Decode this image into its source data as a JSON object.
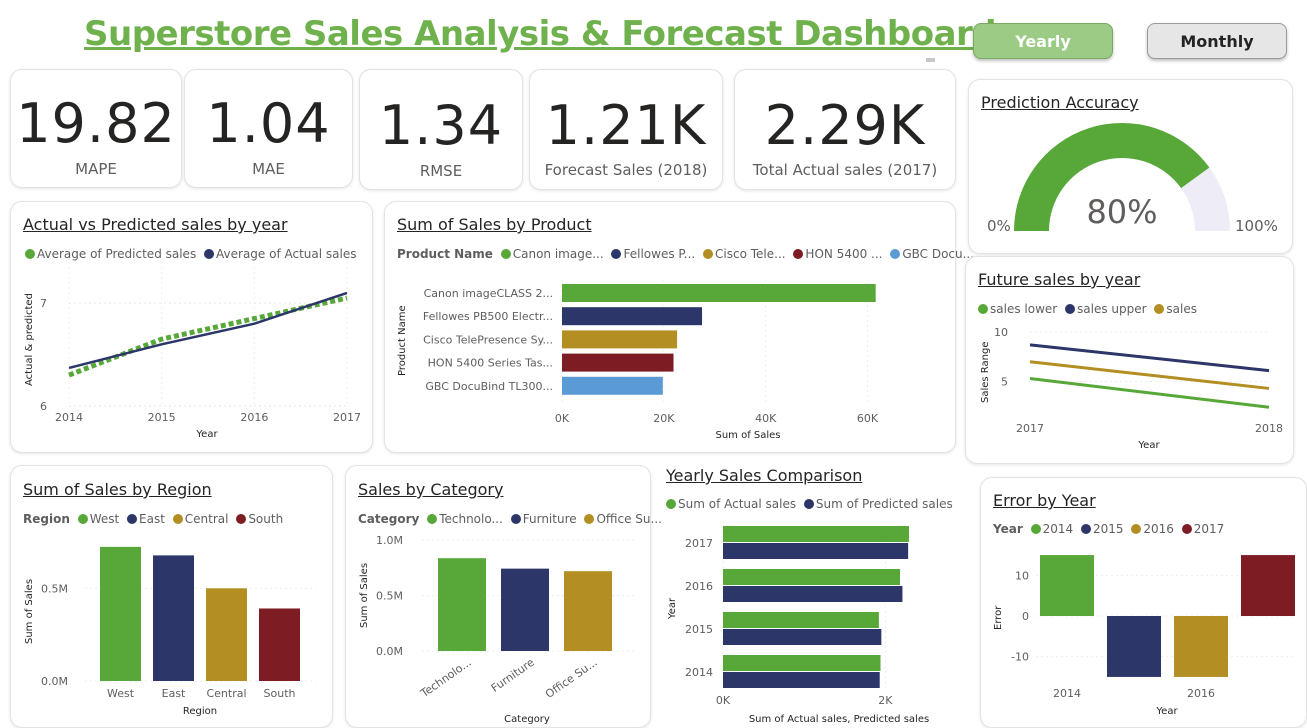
{
  "header": {
    "title": "Superstore Sales Analysis & Forecast Dashboard"
  },
  "toggle": {
    "yearly_label": "Yearly",
    "monthly_label": "Monthly",
    "active": "Yearly"
  },
  "kpis": [
    {
      "value": "19.82",
      "label": "MAPE"
    },
    {
      "value": "1.04",
      "label": "MAE"
    },
    {
      "value": "1.34",
      "label": "RMSE"
    },
    {
      "value": "1.21K",
      "label": "Forecast Sales (2018)"
    },
    {
      "value": "2.29K",
      "label": "Total Actual sales (2017)"
    }
  ],
  "colors": {
    "green": "#58a839",
    "navy": "#2c3669",
    "gold": "#b28e23",
    "maroon": "#7d1c23",
    "blue": "#5b9bd5",
    "gauge_bg": "#eeecf7"
  },
  "accuracy": {
    "title": "Prediction Accuracy",
    "value_label": "80%",
    "min_label": "0%",
    "max_label": "100%",
    "value": 0.8
  },
  "actual_vs_pred": {
    "title": "Actual vs Predicted sales by year",
    "legend": [
      "Average of Predicted sales",
      "Average of Actual sales"
    ],
    "xlabel": "Year",
    "ylabel": "Actual & predicted",
    "xticks": [
      "2014",
      "2015",
      "2016",
      "2017"
    ],
    "yticks": [
      "6",
      "7"
    ]
  },
  "product": {
    "title": "Sum of Sales by Product",
    "legend_title": "Product Name",
    "legend": [
      "Canon image...",
      "Fellowes P...",
      "Cisco Tele...",
      "HON 5400 ...",
      "GBC Docu..."
    ],
    "ylabel": "Product Name",
    "xlabel": "Sum of Sales",
    "xticks": [
      "0K",
      "20K",
      "40K",
      "60K"
    ]
  },
  "future": {
    "title": "Future sales by year",
    "legend": [
      "sales lower",
      "sales upper",
      "sales"
    ],
    "xlabel": "Year",
    "ylabel": "Sales Range",
    "xticks": [
      "2017",
      "2018"
    ],
    "yticks": [
      "5",
      "10"
    ]
  },
  "region": {
    "title": "Sum of Sales by Region",
    "legend_title": "Region",
    "legend": [
      "West",
      "East",
      "Central",
      "South"
    ],
    "xlabel": "Region",
    "ylabel": "Sum of Sales",
    "yticks": [
      "0.0M",
      "0.5M"
    ]
  },
  "category": {
    "title": "Sales by Category",
    "legend_title": "Category",
    "legend": [
      "Technolo...",
      "Furniture",
      "Office Su..."
    ],
    "xlabel": "Category",
    "ylabel": "Sum of Sales",
    "xtick_labels": [
      "Technolo...",
      "Furniture",
      "Office Su..."
    ],
    "yticks": [
      "0.0M",
      "0.5M",
      "1.0M"
    ]
  },
  "yearly": {
    "title": "Yearly Sales Comparison",
    "legend": [
      "Sum of Actual sales",
      "Sum of Predicted sales"
    ],
    "xlabel": "Sum of Actual sales, Predicted sales",
    "ylabel": "Year",
    "xticks": [
      "0K",
      "2K"
    ]
  },
  "error": {
    "title": "Error by Year",
    "legend_title": "Year",
    "legend": [
      "2014",
      "2015",
      "2016",
      "2017"
    ],
    "xlabel": "Year",
    "ylabel": "Error",
    "xtick_labels": [
      "2014",
      "2016"
    ],
    "yticks": [
      "-10",
      "0",
      "10"
    ]
  },
  "chart_data": [
    {
      "type": "line",
      "title": "Actual vs Predicted sales by year",
      "xlabel": "Year",
      "ylabel": "Actual & predicted",
      "x": [
        2014,
        2015,
        2016,
        2017
      ],
      "ylim": [
        6,
        7.4
      ],
      "series": [
        {
          "name": "Average of Predicted sales",
          "values": [
            6.3,
            6.65,
            6.85,
            7.05
          ]
        },
        {
          "name": "Average of Actual sales",
          "values": [
            6.37,
            6.6,
            6.8,
            7.1
          ]
        }
      ]
    },
    {
      "type": "bar",
      "title": "Sum of Sales by Product",
      "xlabel": "Sum of Sales",
      "ylabel": "Product Name",
      "categories": [
        "Canon imageCLASS 2...",
        "Fellowes PB500 Electr...",
        "Cisco TelePresence Sy...",
        "HON 5400 Series Tas...",
        "GBC DocuBind TL300..."
      ],
      "values": [
        61600,
        27500,
        22600,
        21900,
        19800
      ],
      "xlim": [
        0,
        65000
      ]
    },
    {
      "type": "line",
      "title": "Future sales by year",
      "xlabel": "Year",
      "ylabel": "Sales Range",
      "x": [
        2017,
        2018
      ],
      "ylim": [
        0,
        10
      ],
      "series": [
        {
          "name": "sales lower",
          "values": [
            5.3,
            2.4
          ]
        },
        {
          "name": "sales upper",
          "values": [
            8.7,
            6.1
          ]
        },
        {
          "name": "sales",
          "values": [
            7.0,
            4.3
          ]
        }
      ]
    },
    {
      "type": "bar",
      "title": "Sum of Sales by Region",
      "xlabel": "Region",
      "ylabel": "Sum of Sales",
      "categories": [
        "West",
        "East",
        "Central",
        "South"
      ],
      "values": [
        725000,
        679000,
        501000,
        392000
      ],
      "ylim": [
        0,
        800000
      ]
    },
    {
      "type": "bar",
      "title": "Sales by Category",
      "xlabel": "Category",
      "ylabel": "Sum of Sales",
      "categories": [
        "Technology",
        "Furniture",
        "Office Supplies"
      ],
      "values": [
        836000,
        742000,
        719000
      ],
      "ylim": [
        0,
        1000000
      ]
    },
    {
      "type": "bar",
      "title": "Yearly Sales Comparison",
      "xlabel": "Sum of Actual sales, Predicted sales",
      "ylabel": "Year",
      "categories": [
        "2017",
        "2016",
        "2015",
        "2014"
      ],
      "series": [
        {
          "name": "Sum of Actual sales",
          "values": [
            2290,
            2180,
            1920,
            1940
          ]
        },
        {
          "name": "Sum of Predicted sales",
          "values": [
            2280,
            2210,
            1950,
            1930
          ]
        }
      ],
      "xlim": [
        0,
        2500
      ]
    },
    {
      "type": "bar",
      "title": "Error by Year",
      "xlabel": "Year",
      "ylabel": "Error",
      "categories": [
        "2014",
        "2015",
        "2016",
        "2017"
      ],
      "values": [
        15,
        -15,
        -15,
        15
      ],
      "ylim": [
        -16,
        16
      ]
    }
  ]
}
